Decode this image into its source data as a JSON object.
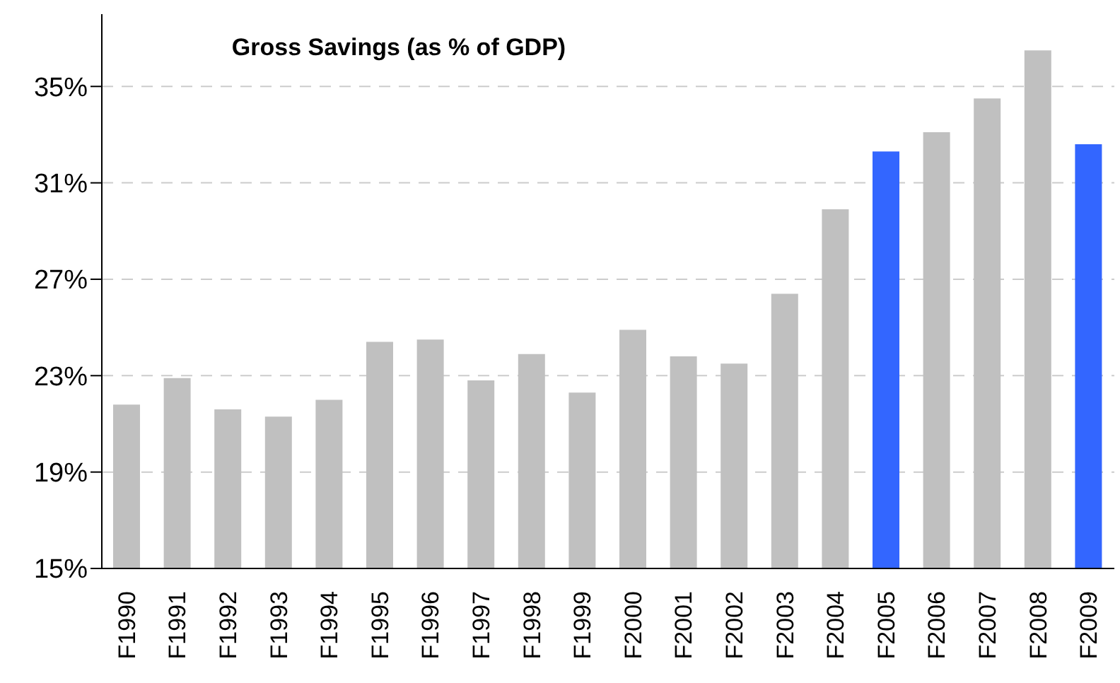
{
  "chart_data": {
    "type": "bar",
    "title": "Gross Savings (as % of GDP)",
    "categories": [
      "F1990",
      "F1991",
      "F1992",
      "F1993",
      "F1994",
      "F1995",
      "F1996",
      "F1997",
      "F1998",
      "F1999",
      "F2000",
      "F2001",
      "F2002",
      "F2003",
      "F2004",
      "F2005",
      "F2006",
      "F2007",
      "F2008",
      "F2009"
    ],
    "values": [
      21.8,
      22.9,
      21.6,
      21.3,
      22.0,
      24.4,
      24.5,
      22.8,
      23.9,
      22.3,
      24.9,
      23.8,
      23.5,
      26.4,
      29.9,
      32.3,
      33.1,
      34.5,
      36.5,
      32.6
    ],
    "colors": [
      "#c0c0c0",
      "#c0c0c0",
      "#c0c0c0",
      "#c0c0c0",
      "#c0c0c0",
      "#c0c0c0",
      "#c0c0c0",
      "#c0c0c0",
      "#c0c0c0",
      "#c0c0c0",
      "#c0c0c0",
      "#c0c0c0",
      "#c0c0c0",
      "#c0c0c0",
      "#c0c0c0",
      "#3366ff",
      "#c0c0c0",
      "#c0c0c0",
      "#c0c0c0",
      "#3366ff"
    ],
    "ylim": [
      15,
      38
    ],
    "yticks": [
      {
        "value": 15,
        "label": "15%"
      },
      {
        "value": 19,
        "label": "19%"
      },
      {
        "value": 23,
        "label": "23%"
      },
      {
        "value": 27,
        "label": "27%"
      },
      {
        "value": 31,
        "label": "31%"
      },
      {
        "value": 35,
        "label": "35%"
      }
    ],
    "grid": "y"
  }
}
